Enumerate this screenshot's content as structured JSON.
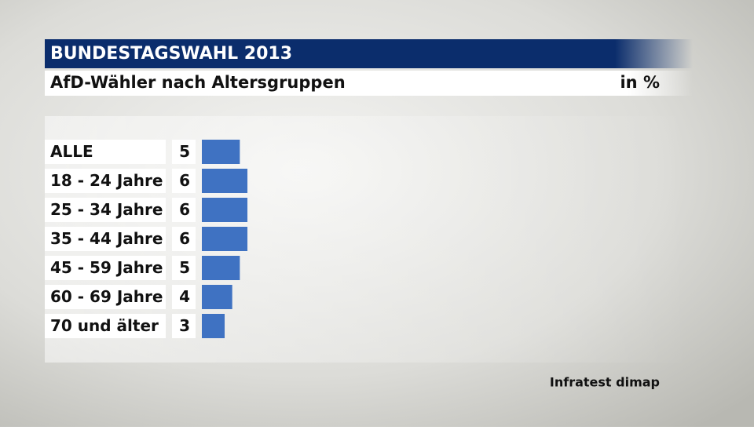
{
  "chart_data": {
    "type": "bar",
    "orientation": "horizontal",
    "title": "BUNDESTAGSWAHL 2013",
    "subtitle": "AfD-Wähler nach Altersgruppen",
    "unit": "in %",
    "source": "Infratest dimap",
    "categories": [
      "ALLE",
      "18 - 24 Jahre",
      "25 - 34 Jahre",
      "35 - 44 Jahre",
      "45 - 59 Jahre",
      "60 - 69 Jahre",
      "70 und älter"
    ],
    "values": [
      5,
      6,
      6,
      6,
      5,
      4,
      3
    ],
    "color": "#3f72c2"
  }
}
